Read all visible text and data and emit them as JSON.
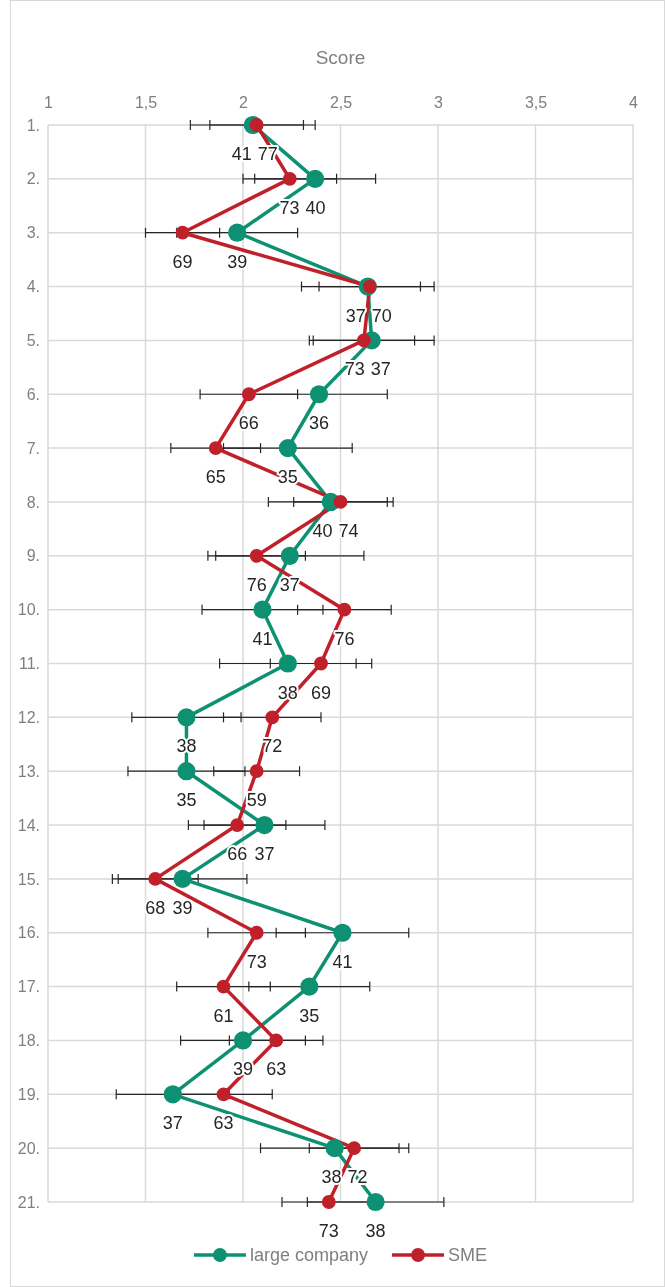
{
  "chart_data": {
    "type": "line",
    "orientation": "horizontal",
    "xlabel": "Score",
    "categories": [
      "1.",
      "2.",
      "3.",
      "4.",
      "5.",
      "6.",
      "7.",
      "8.",
      "9.",
      "10.",
      "11.",
      "12.",
      "13.",
      "14.",
      "15.",
      "16.",
      "17.",
      "18.",
      "19.",
      "20.",
      "21."
    ],
    "xlim": [
      1,
      4
    ],
    "xticks": [
      1,
      {
        "value": 1.5,
        "label": "1,5"
      },
      2,
      {
        "value": 2.5,
        "label": "2,5"
      },
      3,
      {
        "value": 3.5,
        "label": "3,5"
      },
      4
    ],
    "grid": true,
    "legend": "bottom",
    "marker": "circle",
    "line_style": "solid",
    "series": [
      {
        "name": "large company",
        "color": "#0e9172",
        "values": [
          2.05,
          2.37,
          1.97,
          2.64,
          2.66,
          2.39,
          2.23,
          2.45,
          2.24,
          2.1,
          2.23,
          1.71,
          1.71,
          2.11,
          1.69,
          2.51,
          2.34,
          2.0,
          1.64,
          2.47,
          2.68
        ],
        "errors": [
          0.32,
          0.31,
          0.31,
          0.34,
          0.32,
          0.35,
          0.33,
          0.32,
          0.38,
          0.31,
          0.35,
          0.28,
          0.3,
          0.31,
          0.33,
          0.34,
          0.31,
          0.32,
          0.29,
          0.38,
          0.35
        ]
      },
      {
        "name": "SME",
        "color": "#c0202a",
        "values": [
          2.07,
          2.24,
          1.69,
          2.65,
          2.62,
          2.03,
          1.86,
          2.5,
          2.07,
          2.52,
          2.4,
          2.15,
          2.07,
          1.97,
          1.55,
          2.07,
          1.9,
          2.17,
          1.9,
          2.57,
          2.44
        ],
        "errors": [
          0.24,
          0.24,
          0.19,
          0.26,
          0.26,
          0.25,
          0.23,
          0.24,
          0.25,
          0.24,
          0.26,
          0.25,
          0.22,
          0.25,
          0.22,
          0.25,
          0.24,
          0.24,
          0.25,
          0.23,
          0.24
        ]
      }
    ],
    "annotations": [
      {
        "text": "41",
        "x": 2.05,
        "y": "1."
      },
      {
        "text": "77",
        "x": 2.07,
        "y": "1."
      },
      {
        "text": "40",
        "x": 2.37,
        "y": "2."
      },
      {
        "text": "73",
        "x": 2.24,
        "y": "2."
      },
      {
        "text": "39",
        "x": 1.97,
        "y": "3."
      },
      {
        "text": "69",
        "x": 1.69,
        "y": "3."
      },
      {
        "text": "37",
        "x": 2.64,
        "y": "4."
      },
      {
        "text": "70",
        "x": 2.65,
        "y": "4."
      },
      {
        "text": "37",
        "x": 2.66,
        "y": "5."
      },
      {
        "text": "73",
        "x": 2.62,
        "y": "5."
      },
      {
        "text": "36",
        "x": 2.39,
        "y": "6."
      },
      {
        "text": "66",
        "x": 2.03,
        "y": "6."
      },
      {
        "text": "35",
        "x": 2.23,
        "y": "7."
      },
      {
        "text": "65",
        "x": 1.86,
        "y": "7."
      },
      {
        "text": "40",
        "x": 2.45,
        "y": "8."
      },
      {
        "text": "74",
        "x": 2.5,
        "y": "8."
      },
      {
        "text": "37",
        "x": 2.24,
        "y": "9."
      },
      {
        "text": "76",
        "x": 2.07,
        "y": "9."
      },
      {
        "text": "41",
        "x": 2.1,
        "y": "10."
      },
      {
        "text": "76",
        "x": 2.52,
        "y": "10."
      },
      {
        "text": "38",
        "x": 2.23,
        "y": "11."
      },
      {
        "text": "69",
        "x": 2.4,
        "y": "11."
      },
      {
        "text": "38",
        "x": 1.71,
        "y": "12."
      },
      {
        "text": "72",
        "x": 2.15,
        "y": "12."
      },
      {
        "text": "35",
        "x": 1.71,
        "y": "13."
      },
      {
        "text": "59",
        "x": 2.07,
        "y": "13."
      },
      {
        "text": "37",
        "x": 2.11,
        "y": "14."
      },
      {
        "text": "66",
        "x": 1.97,
        "y": "14."
      },
      {
        "text": "39",
        "x": 1.69,
        "y": "15."
      },
      {
        "text": "68",
        "x": 1.55,
        "y": "15."
      },
      {
        "text": "41",
        "x": 2.51,
        "y": "16."
      },
      {
        "text": "73",
        "x": 2.07,
        "y": "16."
      },
      {
        "text": "35",
        "x": 2.34,
        "y": "17."
      },
      {
        "text": "61",
        "x": 1.9,
        "y": "17."
      },
      {
        "text": "39",
        "x": 2.0,
        "y": "18."
      },
      {
        "text": "63",
        "x": 2.17,
        "y": "18."
      },
      {
        "text": "37",
        "x": 1.64,
        "y": "19."
      },
      {
        "text": "63",
        "x": 1.9,
        "y": "19."
      },
      {
        "text": "38",
        "x": 2.47,
        "y": "20."
      },
      {
        "text": "72",
        "x": 2.57,
        "y": "20."
      },
      {
        "text": "38",
        "x": 2.68,
        "y": "21."
      },
      {
        "text": "73",
        "x": 2.44,
        "y": "21."
      }
    ]
  }
}
